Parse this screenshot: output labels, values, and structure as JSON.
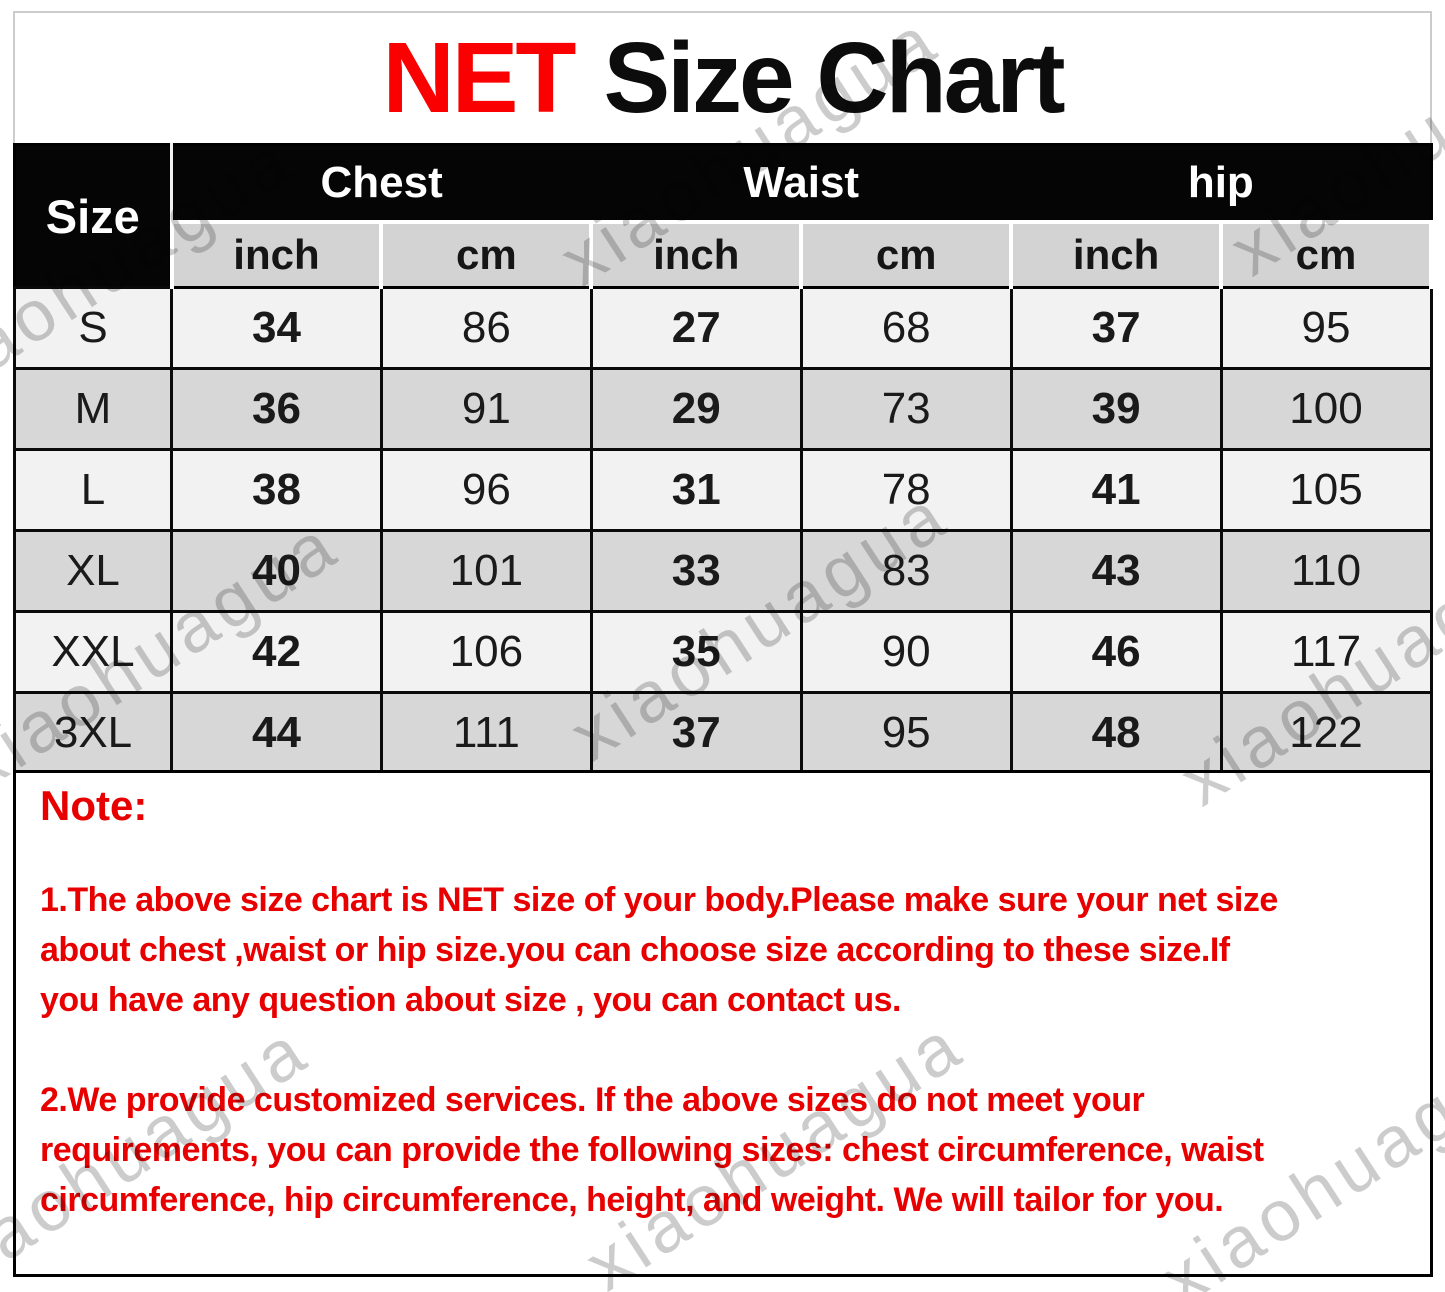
{
  "page": {
    "title_accent": "NET",
    "title_main": "Size Chart"
  },
  "table": {
    "corner_label": "Size",
    "group_headers": [
      "Chest",
      "Waist",
      "hip"
    ],
    "unit_headers": [
      "inch",
      "cm",
      "inch",
      "cm",
      "inch",
      "cm"
    ],
    "rows": [
      {
        "size": "S",
        "values": [
          "34",
          "86",
          "27",
          "68",
          "37",
          "95"
        ]
      },
      {
        "size": "M",
        "values": [
          "36",
          "91",
          "29",
          "73",
          "39",
          "100"
        ]
      },
      {
        "size": "L",
        "values": [
          "38",
          "96",
          "31",
          "78",
          "41",
          "105"
        ]
      },
      {
        "size": "XL",
        "values": [
          "40",
          "101",
          "33",
          "83",
          "43",
          "110"
        ]
      },
      {
        "size": "XXL",
        "values": [
          "42",
          "106",
          "35",
          "90",
          "46",
          "117"
        ]
      },
      {
        "size": "3XL",
        "values": [
          "44",
          "111",
          "37",
          "95",
          "48",
          "122"
        ]
      }
    ]
  },
  "note": {
    "heading": "Note:",
    "paragraph_1": "1.The above size chart is NET size of your body.Please make sure your net size\nabout chest ,waist  or hip size.you can choose size according to these size.If\nyou have any question about size , you can contact us.",
    "paragraph_2": "2.We provide customized services. If the above sizes do not meet your\nrequirements, you can provide the following sizes: chest circumference, waist\ncircumference, hip circumference, height, and weight. We will tailor for you."
  },
  "watermark": {
    "text": "xiaohuagua"
  },
  "colors": {
    "title_accent_red": "#fa0000",
    "note_red": "#e80000",
    "header_bg": "#050505",
    "header_text": "#ffffff",
    "subheader_bg": "#d3d3d3",
    "row_light": "#f2f2f2",
    "row_dark": "#d7d7d7",
    "border_black": "#000000",
    "frame_gray": "#cccccc",
    "watermark_gray": "#9a9a9a"
  }
}
